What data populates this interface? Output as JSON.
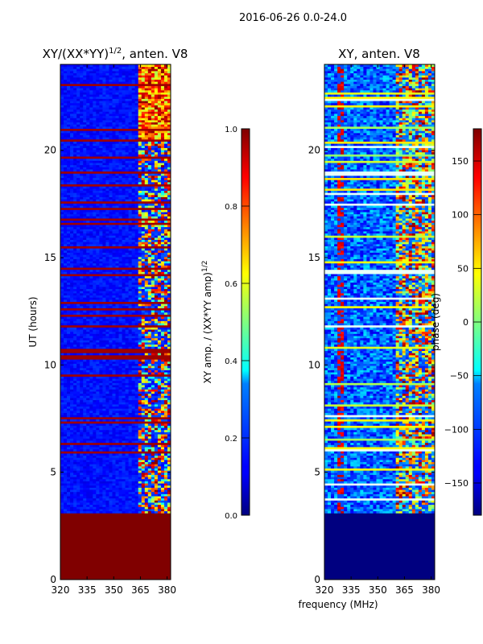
{
  "figure": {
    "suptitle": "2016-06-26 0.0-24.0",
    "shared_xlabel": "frequency (MHz)"
  },
  "chart_data": [
    {
      "type": "heatmap",
      "title": "XY/(XX*YY)",
      "title_superscript": "1/2",
      "title_suffix": ", anten. V8",
      "xlabel": "",
      "ylabel": "UT (hours)",
      "xlim": [
        320,
        382
      ],
      "ylim": [
        0,
        24
      ],
      "xticks": [
        320,
        335,
        350,
        365,
        380
      ],
      "yticks": [
        0,
        5,
        10,
        15,
        20
      ],
      "colormap": "jet",
      "no_data_below_hours": 3.1,
      "no_data_value": 1.0,
      "rfi_band_mhz": [
        363,
        381
      ],
      "colorbar": {
        "label": "XY amp. / (XX*YY amp)",
        "label_superscript": "1/2",
        "range": [
          0.0,
          1.0
        ],
        "ticks": [
          "0.0",
          "0.2",
          "0.4",
          "0.6",
          "0.8",
          "1.0"
        ],
        "tick_values": [
          0.0,
          0.2,
          0.4,
          0.6,
          0.8,
          1.0
        ]
      }
    },
    {
      "type": "heatmap",
      "title": "XY, anten. V8",
      "xlabel": "frequency (MHz)",
      "ylabel": "",
      "xlim": [
        320,
        382
      ],
      "ylim": [
        0,
        24
      ],
      "xticks": [
        320,
        335,
        350,
        365,
        380
      ],
      "yticks": [
        0,
        5,
        10,
        15,
        20
      ],
      "colormap": "jet",
      "no_data_below_hours": 3.1,
      "no_data_value": -180,
      "rfi_band_mhz": [
        359,
        381
      ],
      "colorbar": {
        "label": "phase (deg)",
        "range": [
          -180,
          180
        ],
        "ticks": [
          "−150",
          "−100",
          "−50",
          "0",
          "50",
          "100",
          "150"
        ],
        "tick_values": [
          -150,
          -100,
          -50,
          0,
          50,
          100,
          150
        ]
      }
    }
  ]
}
